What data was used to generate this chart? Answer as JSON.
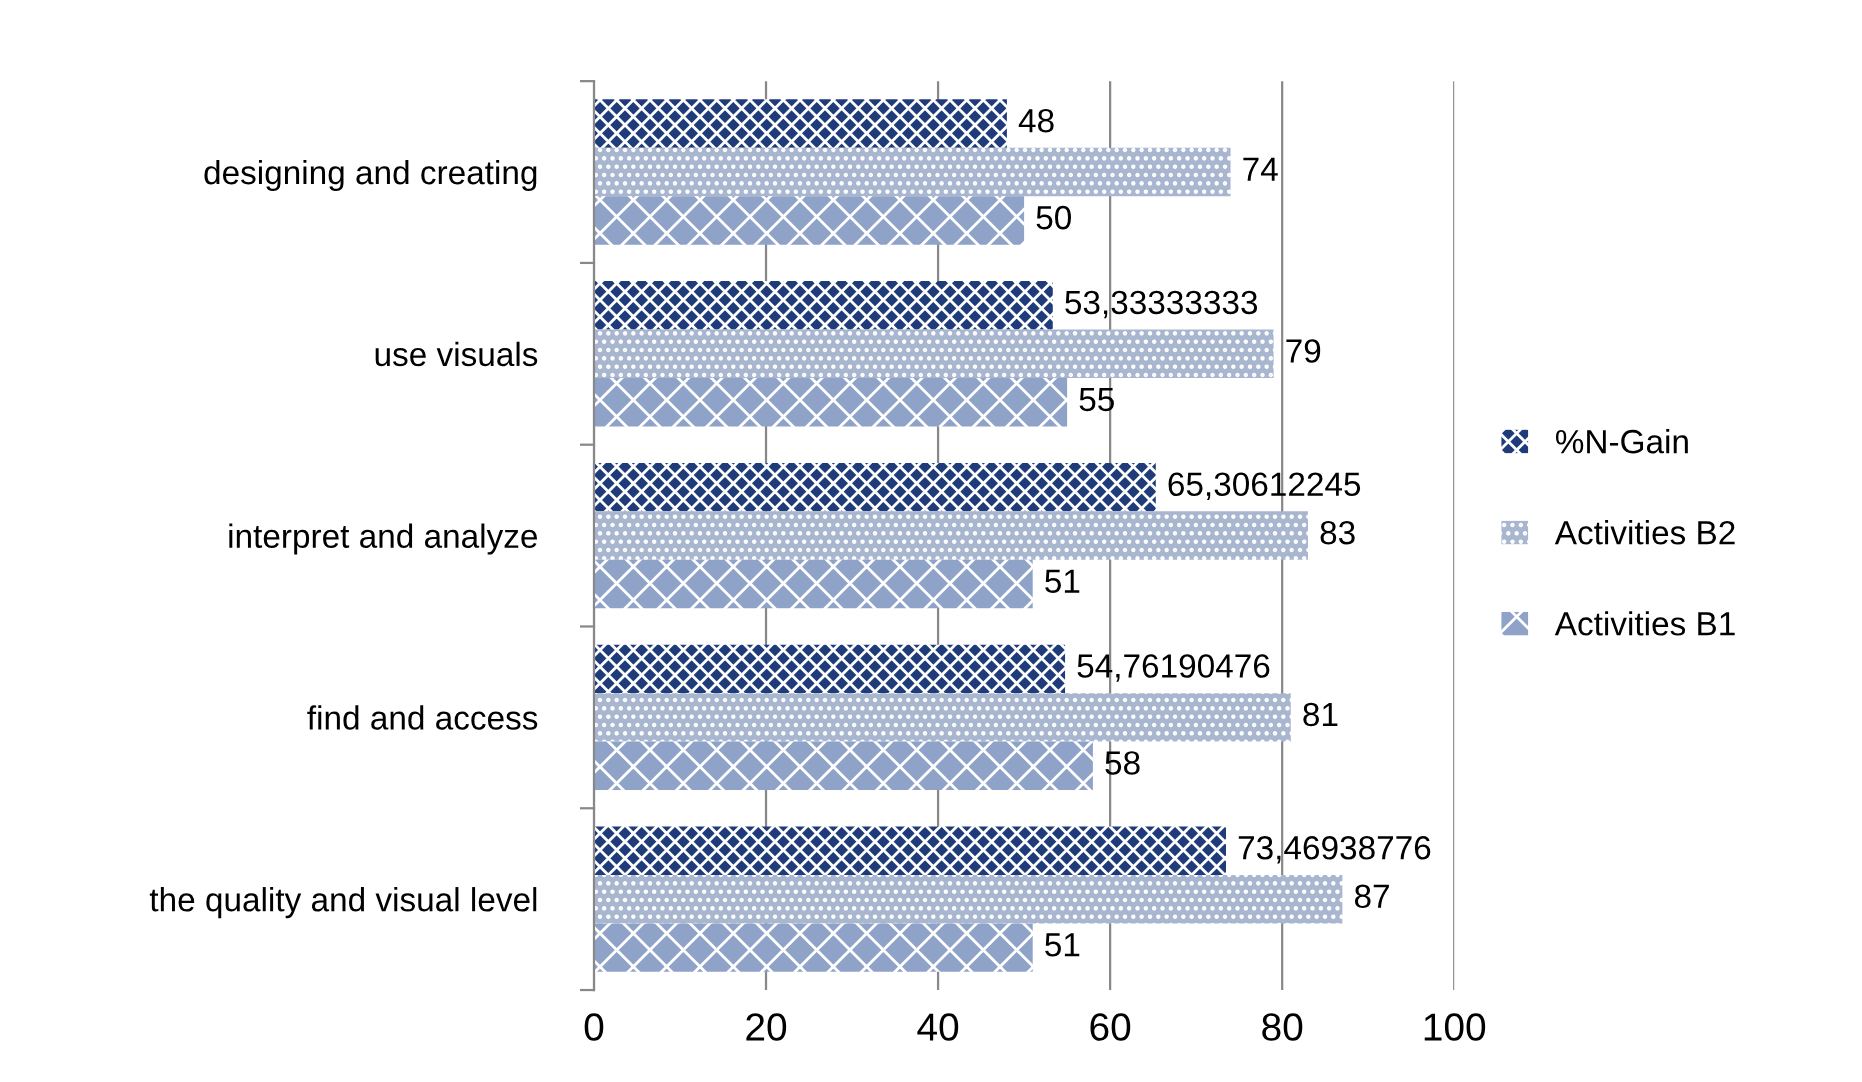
{
  "chart_data": {
    "type": "bar",
    "orientation": "horizontal",
    "categories": [
      "designing and creating",
      "use visuals",
      "interpret and analyze",
      "find and access",
      "the quality and visual level"
    ],
    "series": [
      {
        "name": "%N-Gain",
        "color": "#1f3b7a",
        "values": [
          48,
          53.33333333,
          65.30612245,
          54.76190476,
          73.46938776
        ],
        "value_labels": [
          "48",
          "53,33333333",
          "65,30612245",
          "54,76190476",
          "73,46938776"
        ]
      },
      {
        "name": "Activities B2",
        "color": "#a9b6cf",
        "values": [
          74,
          79,
          83,
          81,
          87
        ],
        "value_labels": [
          "74",
          "79",
          "83",
          "81",
          "87"
        ]
      },
      {
        "name": "Activities B1",
        "color": "#8fa2c8",
        "values": [
          50,
          55,
          51,
          58,
          51
        ],
        "value_labels": [
          "50",
          "55",
          "51",
          "58",
          "51"
        ]
      }
    ],
    "xlim": [
      0,
      100
    ],
    "xticks": [
      0,
      20,
      40,
      60,
      80,
      100
    ],
    "grid": "x",
    "legend": "right"
  }
}
